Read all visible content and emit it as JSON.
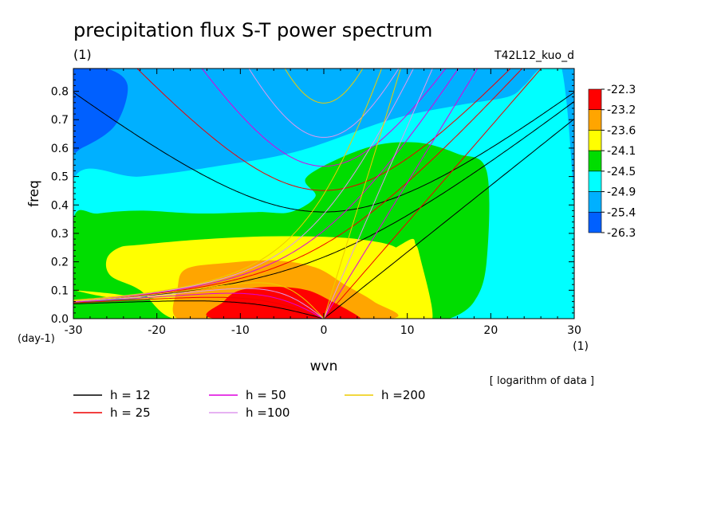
{
  "chart_data": {
    "type": "heatmap",
    "title": "precipitation flux S-T power spectrum",
    "units_label": "(1)",
    "run_label": "T42L12_kuo_d",
    "xlabel": "wvn",
    "x_units": "(1)",
    "ylabel": "freq",
    "y_units": "(day-1)",
    "note": "[ logarithm of data ]",
    "xlim": [
      -30,
      30
    ],
    "ylim": [
      0,
      0.88
    ],
    "x_ticks": [
      -30,
      -20,
      -10,
      0,
      10,
      20,
      30
    ],
    "y_ticks": [
      0.0,
      0.1,
      0.2,
      0.3,
      0.4,
      0.5,
      0.6,
      0.7,
      0.8
    ],
    "colorbar": {
      "labels": [
        "-22.3",
        "-23.2",
        "-23.6",
        "-24.1",
        "-24.5",
        "-24.9",
        "-25.4",
        "-26.3"
      ],
      "colors": [
        "#ff0000",
        "#ffa500",
        "#ffff00",
        "#00dd00",
        "#00ffff",
        "#00b0ff",
        "#0060ff"
      ]
    },
    "field": {
      "background": "#00b0ff",
      "regions": [
        {
          "level": "-25.4",
          "color": "#0060ff",
          "x": [
            -30,
            -26,
            -23.5,
            -25,
            -29,
            -30
          ],
          "y": [
            0.88,
            0.88,
            0.82,
            0.68,
            0.6,
            0.61
          ]
        },
        {
          "level": "-24.9",
          "color": "#00ffff",
          "x": [
            -30,
            -22,
            -12,
            -3,
            8,
            16,
            22,
            24,
            26,
            28.5,
            30,
            30,
            -30
          ],
          "y": [
            0.49,
            0.5,
            0.54,
            0.59,
            0.7,
            0.75,
            0.78,
            0.82,
            0.88,
            0.88,
            0.38,
            0,
            0
          ]
        },
        {
          "level": "-24.1",
          "color": "#00dd00",
          "x": [
            -30,
            -27,
            -22,
            -15,
            -8,
            -4,
            -1,
            -2,
            5,
            11,
            16,
            19.5,
            19.5,
            18,
            15,
            12,
            -30
          ],
          "y": [
            0.35,
            0.37,
            0.38,
            0.37,
            0.375,
            0.375,
            0.43,
            0.5,
            0.6,
            0.62,
            0.58,
            0.52,
            0.2,
            0.06,
            0,
            0,
            0
          ]
        },
        {
          "level": "-23.6",
          "color": "#ffff00",
          "x": [
            -30,
            -24,
            -14,
            -4,
            3,
            8,
            10.5,
            11,
            11.5,
            13,
            10,
            -10,
            -18,
            -22,
            -25.5,
            -26,
            -24.5,
            -22,
            -14,
            -5,
            4,
            9,
            6,
            1,
            -10,
            -20,
            -26,
            -30
          ],
          "y": [
            0.1,
            0.07,
            0.08,
            0.11,
            0.17,
            0.24,
            0.28,
            0.26,
            0.22,
            0,
            0,
            0,
            0,
            0.1,
            0.15,
            0.21,
            0.25,
            0.26,
            0.28,
            0.29,
            0.28,
            0.24,
            0.15,
            0.09,
            0.06,
            0.07,
            0.09,
            0.1
          ]
        },
        {
          "level": "-23.2",
          "color": "#ffa500",
          "x": [
            -17.5,
            -17.5,
            -16.5,
            -12,
            -6,
            -1,
            2.5,
            6,
            8,
            -10
          ],
          "y": [
            0,
            0.11,
            0.175,
            0.195,
            0.205,
            0.18,
            0.12,
            0.06,
            0,
            0
          ]
        },
        {
          "level": "-22.3",
          "color": "#ff0000",
          "x": [
            -13,
            -12,
            -10,
            -6,
            -2,
            1,
            3.5,
            4.5,
            4.5
          ],
          "y": [
            0,
            0.06,
            0.1,
            0.112,
            0.1,
            0.06,
            0.02,
            0,
            0
          ]
        }
      ]
    },
    "series": [
      {
        "name": "h = 12",
        "h": 12,
        "color": "#000000"
      },
      {
        "name": "h = 25",
        "h": 25,
        "color": "#ee0000"
      },
      {
        "name": "h = 50",
        "h": 50,
        "color": "#dd00dd"
      },
      {
        "name": "h =100",
        "h": 100,
        "color": "#dd99ee"
      },
      {
        "name": "h =200",
        "h": 200,
        "color": "#eecc00"
      }
    ]
  }
}
